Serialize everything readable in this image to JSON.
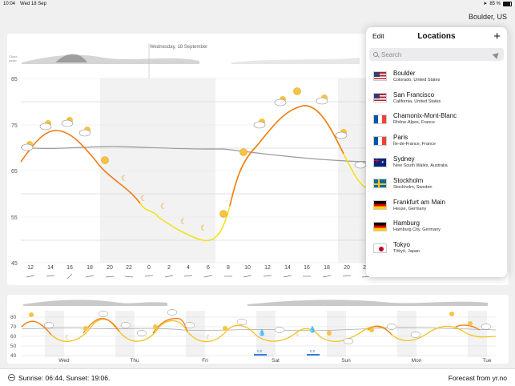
{
  "status_bar": {
    "time": "10:04",
    "date": "Wed 18 Sep",
    "battery": "85 %"
  },
  "header": {
    "location_title": "Boulder, US"
  },
  "main_chart": {
    "date_label": "Wednesday, 18 September",
    "legend_label_1": "Cloud",
    "legend_label_2": "cover",
    "y_ticks": [
      "85",
      "75",
      "65",
      "55",
      "45"
    ],
    "x_ticks": [
      "12",
      "14",
      "16",
      "18",
      "20",
      "22",
      "0",
      "2",
      "4",
      "6",
      "8",
      "10",
      "12",
      "14",
      "16",
      "18",
      "20",
      "22"
    ]
  },
  "week_chart": {
    "y_ticks": [
      "80",
      "70",
      "60",
      "50",
      "40"
    ],
    "days": [
      "Wed",
      "Thu",
      "Fri",
      "Sat",
      "Sun",
      "Mon",
      "Tue"
    ],
    "precip_labels": [
      "0.0",
      "0.0"
    ]
  },
  "footer": {
    "sun_text": "Sunrise: 06:44, Sunset: 19:06.",
    "credit": "Forecast from yr.no"
  },
  "popover": {
    "edit_label": "Edit",
    "title": "Locations",
    "add_label": "+",
    "search_placeholder": "Search",
    "locations": [
      {
        "name": "Boulder",
        "region": "Colorado, United States",
        "flag": "us"
      },
      {
        "name": "San Francisco",
        "region": "California, United States",
        "flag": "us"
      },
      {
        "name": "Chamonix-Mont-Blanc",
        "region": "Rhône-Alpes, France",
        "flag": "fr"
      },
      {
        "name": "Paris",
        "region": "Île-de-France, France",
        "flag": "fr"
      },
      {
        "name": "Sydney",
        "region": "New South Wales, Australia",
        "flag": "au"
      },
      {
        "name": "Stockholm",
        "region": "Stockholm, Sweden",
        "flag": "se"
      },
      {
        "name": "Frankfurt am Main",
        "region": "Hesse, Germany",
        "flag": "de"
      },
      {
        "name": "Hamburg",
        "region": "Hamburg City, Germany",
        "flag": "de"
      },
      {
        "name": "Tokyo",
        "region": "Tōkyō, Japan",
        "flag": "jp"
      }
    ]
  },
  "colors": {
    "warm_line": "#f07d1a",
    "cool_line": "#f2e21f",
    "grey_line": "#999999"
  }
}
